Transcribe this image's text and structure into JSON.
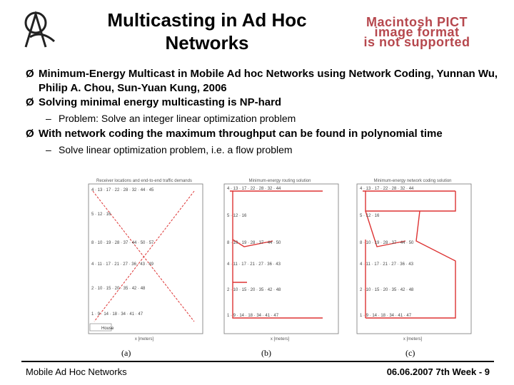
{
  "slide": {
    "title_line1": "Multicasting in Ad Hoc",
    "title_line2": "Networks",
    "image_placeholder": [
      "Macintosh PICT",
      "image format",
      "is not supported"
    ]
  },
  "bullets": [
    {
      "level": 1,
      "text": "Minimum-Energy Multicast in Mobile Ad hoc Networks using Network Coding, Yunnan Wu, Philip A. Chou, Sun-Yuan Kung, 2006"
    },
    {
      "level": 1,
      "text": "Solving minimal energy multicasting is NP-hard"
    },
    {
      "level": 2,
      "text": "Problem: Solve an integer linear optimization problem"
    },
    {
      "level": 1,
      "text": "With network coding the maximum throughput can be found in polynomial time"
    },
    {
      "level": 2,
      "text": "Solve linear optimization problem, i.e. a flow problem"
    }
  ],
  "figures": {
    "panel_a": {
      "title": "Receiver locations and end-to-end traffic demands",
      "caption": "(a)",
      "legend": "House",
      "xlabel": "x [meters]"
    },
    "panel_b": {
      "title": "Minimum-energy routing solution",
      "caption": "(b)",
      "xlabel": "x [meters]",
      "ylabel": "y [meters]"
    },
    "panel_c": {
      "title": "Minimum-energy network coding solution",
      "caption": "(c)",
      "xlabel": "x [meters]",
      "ylabel": "y [meters]"
    }
  },
  "footer": {
    "left": "Mobile Ad Hoc Networks",
    "right": "06.06.2007 7th Week - 9"
  }
}
